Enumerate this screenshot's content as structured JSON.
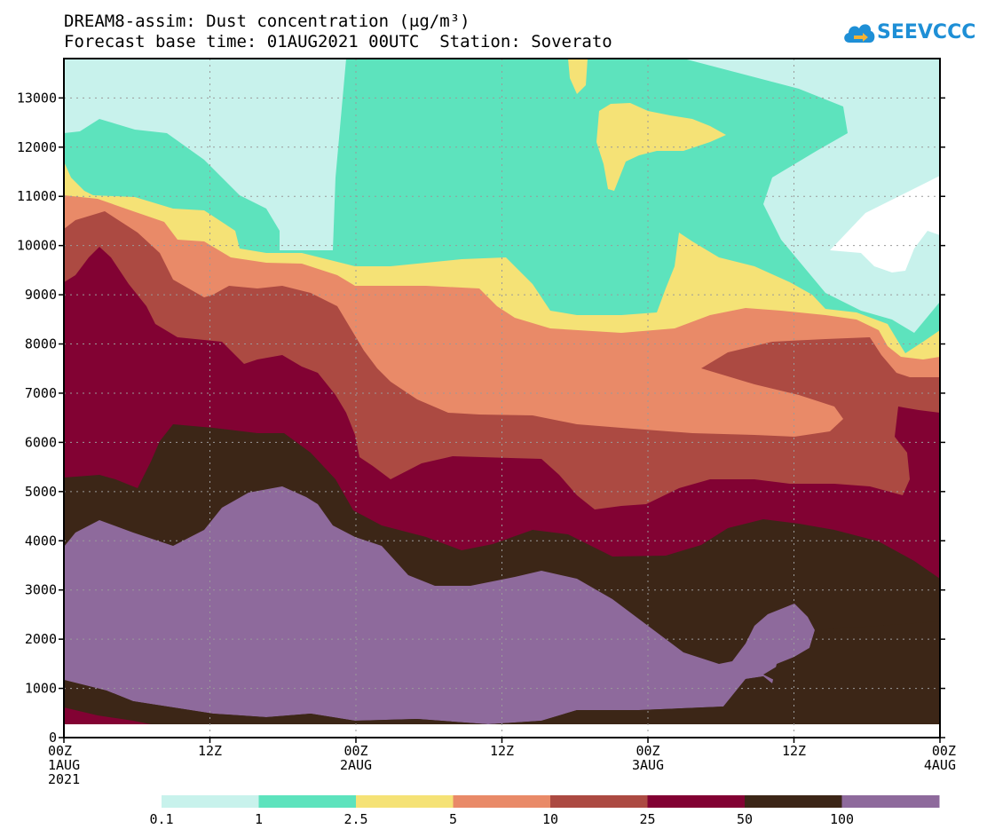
{
  "title_line1": "DREAM8-assim: Dust concentration (μg/m³)",
  "title_line2": "Forecast base time: 01AUG2021 00UTC  Station: Soverato",
  "logo_text": "SEEVCCC",
  "logo_icon": "cloud-icon",
  "chart_data": {
    "type": "contour",
    "title": "DREAM8-assim: Dust concentration (μg/m³)",
    "x_range_hours": [
      0,
      72
    ],
    "ylim": [
      0,
      13800
    ],
    "y_ticks": [
      0,
      1000,
      2000,
      3000,
      4000,
      5000,
      6000,
      7000,
      8000,
      9000,
      10000,
      11000,
      12000,
      13000
    ],
    "x_ticks": [
      {
        "hour": 0,
        "label": "00Z",
        "sub": "1AUG",
        "sub2": "2021"
      },
      {
        "hour": 12,
        "label": "12Z",
        "sub": "",
        "sub2": ""
      },
      {
        "hour": 24,
        "label": "00Z",
        "sub": "2AUG",
        "sub2": ""
      },
      {
        "hour": 36,
        "label": "12Z",
        "sub": "",
        "sub2": ""
      },
      {
        "hour": 48,
        "label": "00Z",
        "sub": "3AUG",
        "sub2": ""
      },
      {
        "hour": 60,
        "label": "12Z",
        "sub": "",
        "sub2": ""
      },
      {
        "hour": 72,
        "label": "00Z",
        "sub": "4AUG",
        "sub2": ""
      }
    ],
    "grid": true,
    "levels": [
      {
        "min": 0.1,
        "color": "#c8f2ec"
      },
      {
        "min": 1,
        "color": "#5de3bd"
      },
      {
        "min": 2.5,
        "color": "#f5e276"
      },
      {
        "min": 5,
        "color": "#e98a68"
      },
      {
        "min": 10,
        "color": "#ac4a42"
      },
      {
        "min": 25,
        "color": "#820233"
      },
      {
        "min": 50,
        "color": "#3c2617"
      },
      {
        "min": 100,
        "color": "#8e6a9c"
      }
    ],
    "colorbar_labels": [
      "0.1",
      "1",
      "2.5",
      "5",
      "10",
      "25",
      "50",
      "100"
    ],
    "ground_level_m": 300,
    "region_boundaries": [
      {
        "level_min": 1,
        "upper": [
          [
            0,
            12200
          ],
          [
            2,
            12300
          ],
          [
            4,
            12550
          ],
          [
            7,
            12350
          ],
          [
            10,
            12250
          ],
          [
            12,
            11900
          ],
          [
            15,
            11100
          ],
          [
            16.5,
            10600
          ],
          [
            17,
            10000
          ],
          [
            18,
            9950
          ],
          [
            21,
            9950
          ],
          [
            21,
            11000
          ],
          [
            22,
            13800
          ]
        ],
        "notes": "upper boundary of 1+ band, western part"
      },
      {
        "level_min": 100,
        "upper": [
          [
            0,
            3900
          ],
          [
            3,
            4450
          ],
          [
            6,
            4100
          ],
          [
            9,
            3900
          ],
          [
            12,
            4250
          ],
          [
            15,
            5000
          ],
          [
            18,
            5100
          ],
          [
            21,
            4850
          ],
          [
            24,
            4100
          ],
          [
            27,
            3800
          ],
          [
            30,
            3150
          ],
          [
            34,
            3100
          ],
          [
            38,
            3300
          ],
          [
            41,
            3400
          ],
          [
            45,
            3050
          ],
          [
            48,
            2350
          ],
          [
            51,
            1750
          ],
          [
            54,
            1500
          ],
          [
            56,
            1550
          ],
          [
            58,
            2350
          ],
          [
            60,
            2700
          ],
          [
            61,
            2400
          ],
          [
            60.3,
            1800
          ],
          [
            58,
            1500
          ],
          [
            55,
            1300
          ]
        ],
        "lower": [
          [
            0,
            1200
          ],
          [
            4,
            900
          ],
          [
            8,
            800
          ],
          [
            12,
            500
          ],
          [
            18,
            500
          ],
          [
            24,
            350
          ],
          [
            30,
            400
          ],
          [
            34,
            300
          ],
          [
            40,
            400
          ],
          [
            44,
            600
          ],
          [
            49,
            600
          ],
          [
            54,
            600
          ],
          [
            55,
            1300
          ]
        ]
      }
    ]
  }
}
